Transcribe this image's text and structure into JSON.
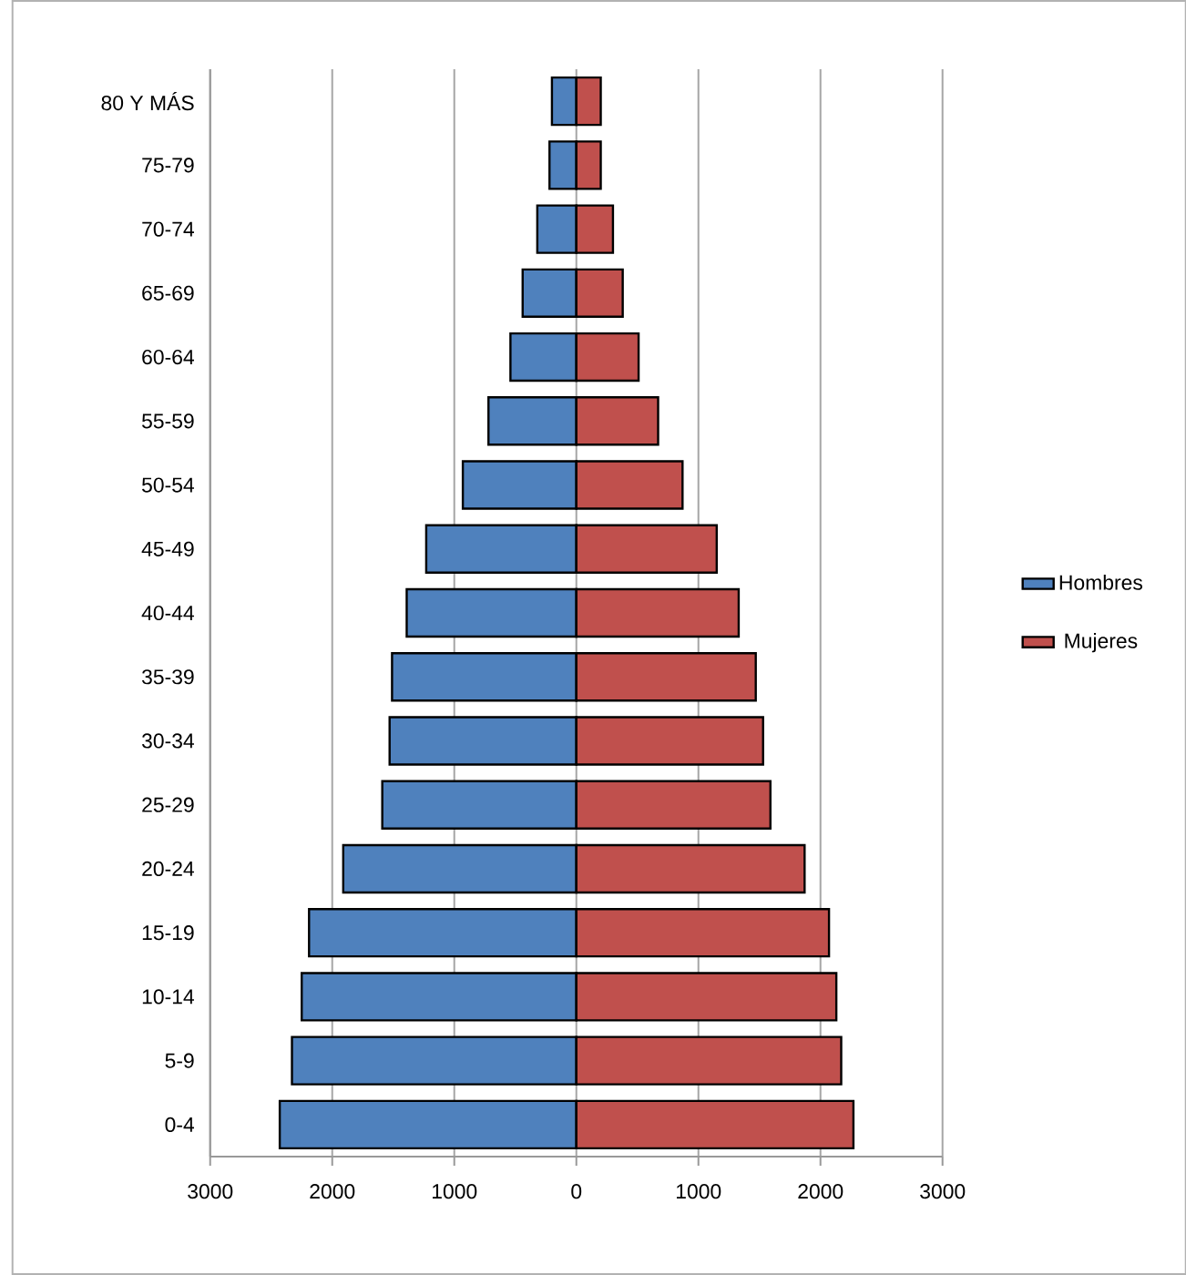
{
  "chart_data": {
    "type": "bar",
    "orientation": "horizontal",
    "categories": [
      "80 Y MÁS",
      "75-79",
      "70-74",
      "65-69",
      "60-64",
      "55-59",
      "50-54",
      "45-49",
      "40-44",
      "35-39",
      "30-34",
      "25-29",
      "20-24",
      "15-19",
      "10-14",
      "5-9",
      "0-4"
    ],
    "series": [
      {
        "name": "Hombres",
        "color": "#4f81bd",
        "values": [
          -200,
          -220,
          -320,
          -440,
          -540,
          -720,
          -930,
          -1230,
          -1390,
          -1510,
          -1530,
          -1590,
          -1910,
          -2190,
          -2250,
          -2330,
          -2430
        ]
      },
      {
        "name": "Mujeres",
        "color": "#c0504d",
        "values": [
          200,
          200,
          300,
          380,
          510,
          670,
          870,
          1150,
          1330,
          1470,
          1530,
          1590,
          1870,
          2070,
          2130,
          2170,
          2270
        ]
      }
    ],
    "xlim": [
      -3000,
      3000
    ],
    "xticks": [
      {
        "value": -3000,
        "label": "3000"
      },
      {
        "value": -2000,
        "label": "2000"
      },
      {
        "value": -1000,
        "label": "1000"
      },
      0,
      1000,
      2000,
      3000
    ],
    "stacked": true,
    "grid": "x",
    "legend": "right"
  }
}
